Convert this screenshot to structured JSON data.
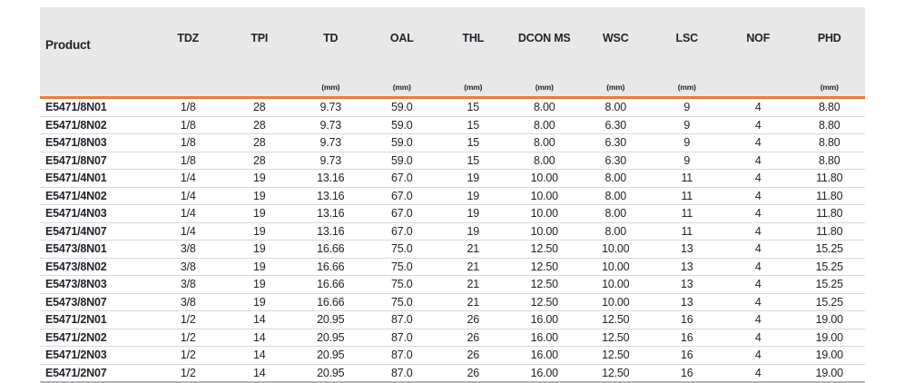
{
  "theme": {
    "header_bg": "#e9e8e8",
    "accent_orange": "#ef7b36",
    "row_divider": "#d8d8d8",
    "bottom_border": "#b3b3b3",
    "text_color": "#25222c"
  },
  "table": {
    "columns": [
      {
        "key": "product",
        "label": "Product",
        "unit": ""
      },
      {
        "key": "tdz",
        "label": "TDZ",
        "unit": ""
      },
      {
        "key": "tpi",
        "label": "TPI",
        "unit": ""
      },
      {
        "key": "td",
        "label": "TD",
        "unit": "(mm)"
      },
      {
        "key": "oal",
        "label": "OAL",
        "unit": "(mm)"
      },
      {
        "key": "thl",
        "label": "THL",
        "unit": "(mm)"
      },
      {
        "key": "dcon_ms",
        "label": "DCON MS",
        "unit": "(mm)"
      },
      {
        "key": "wsc",
        "label": "WSC",
        "unit": "(mm)"
      },
      {
        "key": "lsc",
        "label": "LSC",
        "unit": "(mm)"
      },
      {
        "key": "nof",
        "label": "NOF",
        "unit": ""
      },
      {
        "key": "phd",
        "label": "PHD",
        "unit": "(mm)"
      }
    ],
    "rows": [
      {
        "product": "E5471/8N01",
        "values": [
          "1/8",
          "28",
          "9.73",
          "59.0",
          "15",
          "8.00",
          "8.00",
          "9",
          "4",
          "8.80"
        ]
      },
      {
        "product": "E5471/8N02",
        "values": [
          "1/8",
          "28",
          "9.73",
          "59.0",
          "15",
          "8.00",
          "6.30",
          "9",
          "4",
          "8.80"
        ]
      },
      {
        "product": "E5471/8N03",
        "values": [
          "1/8",
          "28",
          "9.73",
          "59.0",
          "15",
          "8.00",
          "6.30",
          "9",
          "4",
          "8.80"
        ]
      },
      {
        "product": "E5471/8N07",
        "values": [
          "1/8",
          "28",
          "9.73",
          "59.0",
          "15",
          "8.00",
          "6.30",
          "9",
          "4",
          "8.80"
        ]
      },
      {
        "product": "E5471/4N01",
        "values": [
          "1/4",
          "19",
          "13.16",
          "67.0",
          "19",
          "10.00",
          "8.00",
          "11",
          "4",
          "11.80"
        ]
      },
      {
        "product": "E5471/4N02",
        "values": [
          "1/4",
          "19",
          "13.16",
          "67.0",
          "19",
          "10.00",
          "8.00",
          "11",
          "4",
          "11.80"
        ]
      },
      {
        "product": "E5471/4N03",
        "values": [
          "1/4",
          "19",
          "13.16",
          "67.0",
          "19",
          "10.00",
          "8.00",
          "11",
          "4",
          "11.80"
        ]
      },
      {
        "product": "E5471/4N07",
        "values": [
          "1/4",
          "19",
          "13.16",
          "67.0",
          "19",
          "10.00",
          "8.00",
          "11",
          "4",
          "11.80"
        ]
      },
      {
        "product": "E5473/8N01",
        "values": [
          "3/8",
          "19",
          "16.66",
          "75.0",
          "21",
          "12.50",
          "10.00",
          "13",
          "4",
          "15.25"
        ]
      },
      {
        "product": "E5473/8N02",
        "values": [
          "3/8",
          "19",
          "16.66",
          "75.0",
          "21",
          "12.50",
          "10.00",
          "13",
          "4",
          "15.25"
        ]
      },
      {
        "product": "E5473/8N03",
        "values": [
          "3/8",
          "19",
          "16.66",
          "75.0",
          "21",
          "12.50",
          "10.00",
          "13",
          "4",
          "15.25"
        ]
      },
      {
        "product": "E5473/8N07",
        "values": [
          "3/8",
          "19",
          "16.66",
          "75.0",
          "21",
          "12.50",
          "10.00",
          "13",
          "4",
          "15.25"
        ]
      },
      {
        "product": "E5471/2N01",
        "values": [
          "1/2",
          "14",
          "20.95",
          "87.0",
          "26",
          "16.00",
          "12.50",
          "16",
          "4",
          "19.00"
        ]
      },
      {
        "product": "E5471/2N02",
        "values": [
          "1/2",
          "14",
          "20.95",
          "87.0",
          "26",
          "16.00",
          "12.50",
          "16",
          "4",
          "19.00"
        ]
      },
      {
        "product": "E5471/2N03",
        "values": [
          "1/2",
          "14",
          "20.95",
          "87.0",
          "26",
          "16.00",
          "12.50",
          "16",
          "4",
          "19.00"
        ]
      },
      {
        "product": "E5471/2N07",
        "values": [
          "1/2",
          "14",
          "20.95",
          "87.0",
          "26",
          "16.00",
          "12.50",
          "16",
          "4",
          "19.00"
        ]
      }
    ]
  }
}
